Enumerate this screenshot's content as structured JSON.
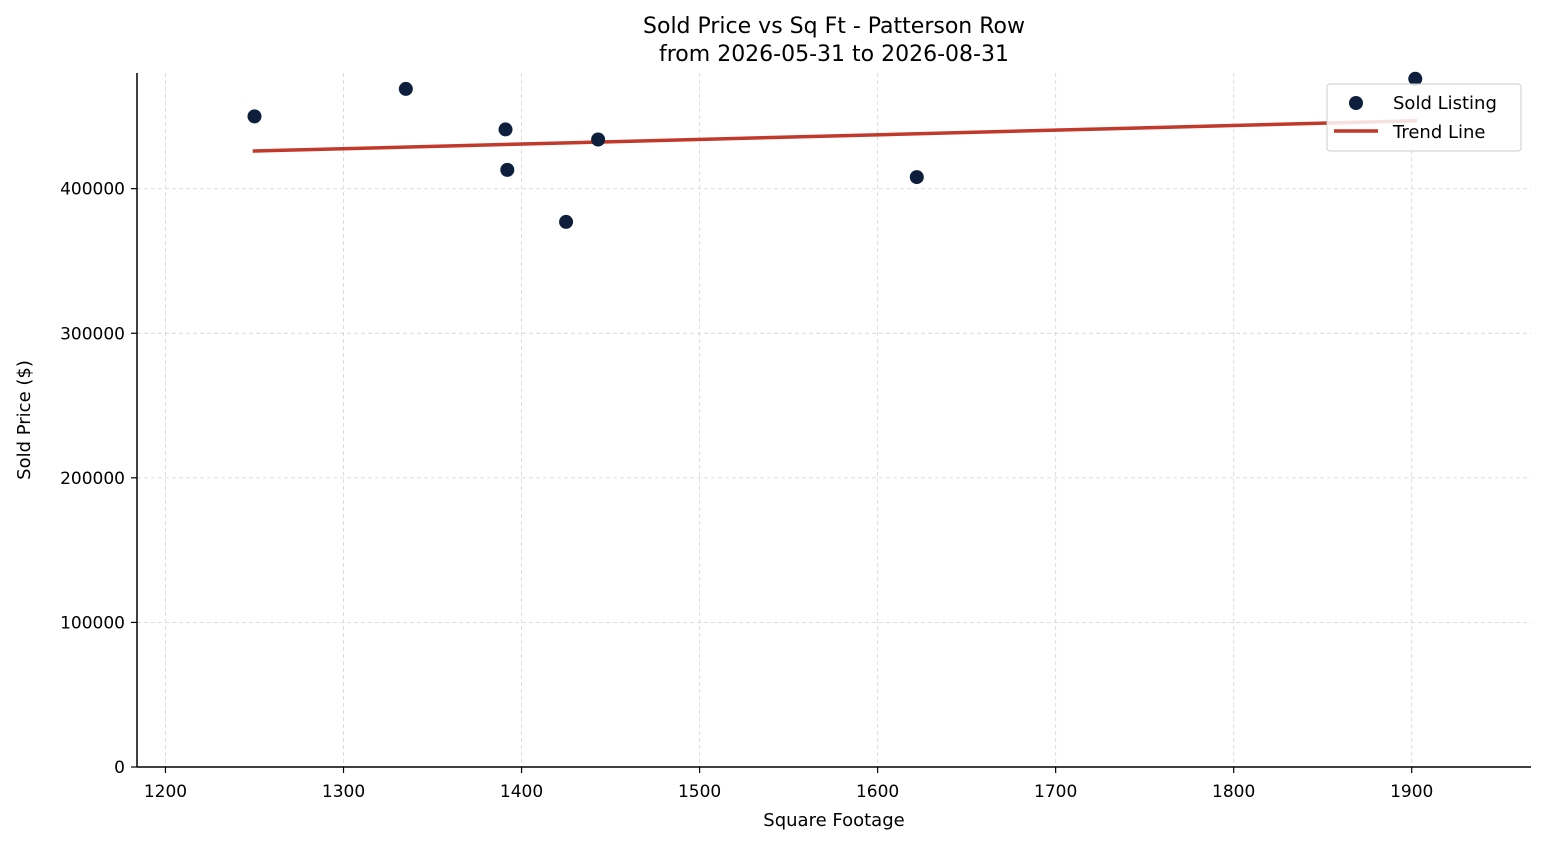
{
  "chart_data": {
    "type": "scatter",
    "title": "Sold Price vs Sq Ft - Patterson Row",
    "subtitle": "from 2026-05-31 to 2026-08-31",
    "xlabel": "Square Footage",
    "ylabel": "Sold Price ($)",
    "xlim": [
      1184,
      1967
    ],
    "ylim": [
      0,
      480000
    ],
    "x_ticks": [
      1200,
      1300,
      1400,
      1500,
      1600,
      1700,
      1800,
      1900
    ],
    "y_ticks": [
      0,
      100000,
      200000,
      300000,
      400000
    ],
    "grid": true,
    "legend_position": "upper right",
    "series": [
      {
        "name": "Sold Listing",
        "kind": "scatter",
        "color": "#0d1f3c",
        "points": [
          {
            "x": 1250,
            "y": 450000
          },
          {
            "x": 1335,
            "y": 469000
          },
          {
            "x": 1391,
            "y": 441000
          },
          {
            "x": 1392,
            "y": 413000
          },
          {
            "x": 1425,
            "y": 377000
          },
          {
            "x": 1443,
            "y": 434000
          },
          {
            "x": 1622,
            "y": 408000
          },
          {
            "x": 1902,
            "y": 476000
          }
        ]
      },
      {
        "name": "Trend Line",
        "kind": "line",
        "color": "#c0392b",
        "points": [
          {
            "x": 1249,
            "y": 426000
          },
          {
            "x": 1903,
            "y": 447000
          }
        ]
      }
    ]
  }
}
